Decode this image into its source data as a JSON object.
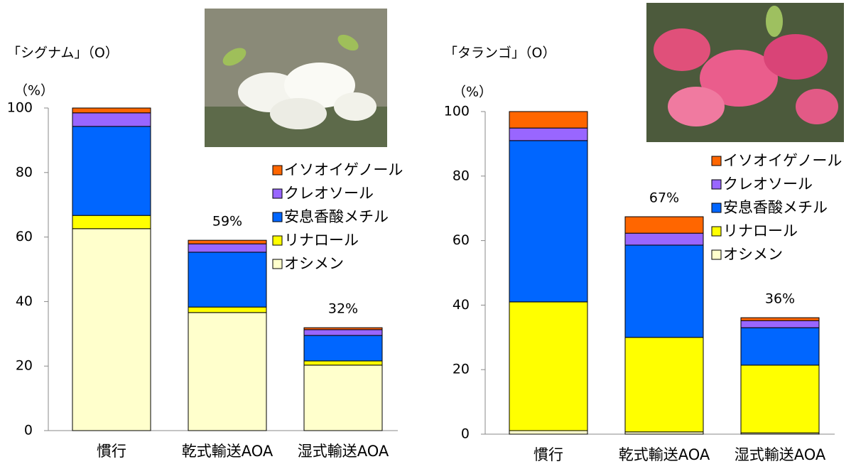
{
  "chart_data": [
    {
      "type": "bar",
      "stacked": true,
      "title": "「シグナム」（O）",
      "ylabel": "（%）",
      "categories": [
        "慣行",
        "乾式輸送AOA",
        "湿式輸送AOA"
      ],
      "series": [
        {
          "name": "オシメン",
          "color": "#ffffcc",
          "values": [
            62.6,
            36.6,
            20.3
          ]
        },
        {
          "name": "リナロール",
          "color": "#ffff00",
          "values": [
            4.1,
            1.7,
            1.3
          ]
        },
        {
          "name": "安息香酸メチル",
          "color": "#0066ff",
          "values": [
            27.6,
            17.0,
            7.9
          ]
        },
        {
          "name": "クレオソール",
          "color": "#9966ff",
          "values": [
            4.2,
            2.6,
            1.8
          ]
        },
        {
          "name": "イソオイゲノール",
          "color": "#ff6600",
          "values": [
            1.5,
            1.1,
            0.6
          ]
        }
      ],
      "total_labels": [
        null,
        "59%",
        "32%"
      ],
      "ylim": [
        0,
        100
      ],
      "yticks": [
        0,
        20,
        40,
        60,
        80,
        100
      ],
      "legend": "right"
    },
    {
      "type": "bar",
      "stacked": true,
      "title": "「タランゴ」（O）",
      "ylabel": "（%）",
      "categories": [
        "慣行",
        "乾式輸送AOA",
        "湿式輸送AOA"
      ],
      "series": [
        {
          "name": "オシメン",
          "color": "#ffffcc",
          "values": [
            1.1,
            0.7,
            0.4
          ]
        },
        {
          "name": "リナロール",
          "color": "#ffff00",
          "values": [
            39.9,
            29.3,
            21.0
          ]
        },
        {
          "name": "安息香酸メチル",
          "color": "#0066ff",
          "values": [
            50.0,
            28.6,
            11.6
          ]
        },
        {
          "name": "クレオソール",
          "color": "#9966ff",
          "values": [
            3.9,
            3.7,
            2.2
          ]
        },
        {
          "name": "イソオイゲノール",
          "color": "#ff6600",
          "values": [
            5.1,
            5.1,
            0.9
          ]
        }
      ],
      "total_labels": [
        null,
        "67%",
        "36%"
      ],
      "ylim": [
        0,
        100
      ],
      "yticks": [
        0,
        20,
        40,
        60,
        80,
        100
      ],
      "legend": "right"
    }
  ]
}
